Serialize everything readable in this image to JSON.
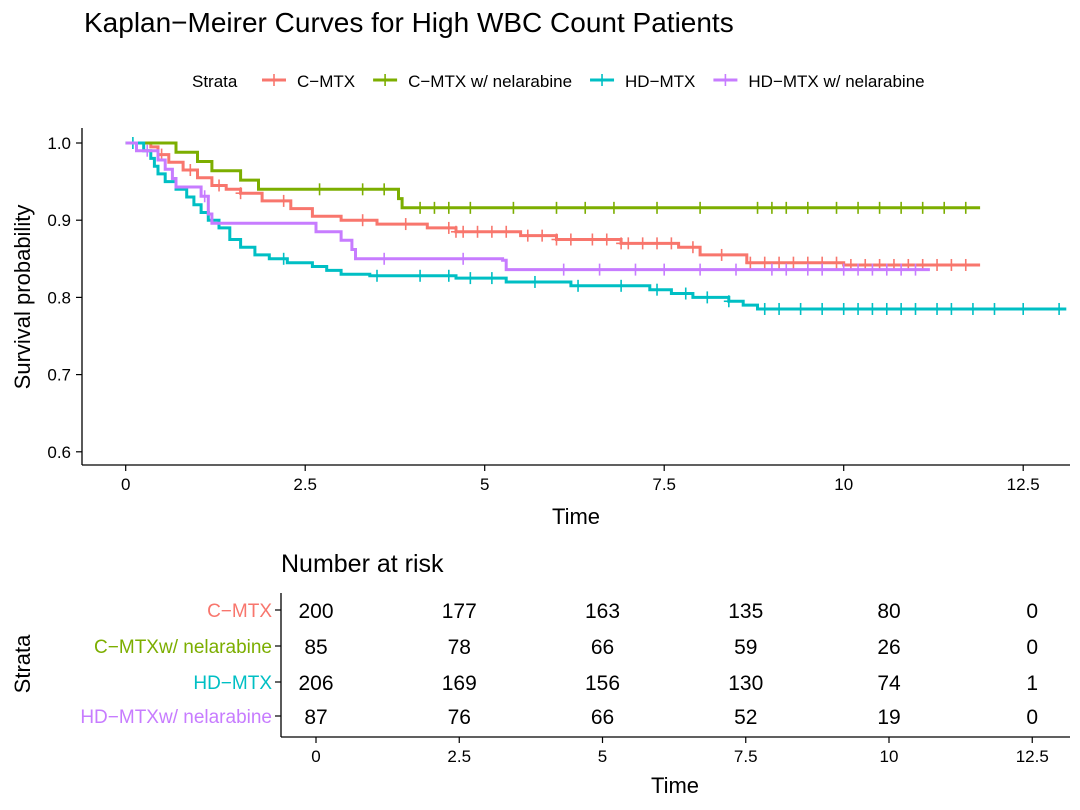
{
  "km_plot": {
    "title": "Kaplan−Meirer Curves for High WBC Count Patients",
    "legend_title": "Strata",
    "xlabel": "Time",
    "ylabel": "Survival probability",
    "xticks": [
      "0",
      "2.5",
      "5",
      "7.5",
      "10",
      "12.5"
    ],
    "yticks": [
      "0.6",
      "0.7",
      "0.8",
      "0.9",
      "1.0"
    ]
  },
  "risk_table": {
    "title": "Number at risk",
    "ylabel": "Strata",
    "xlabel": "Time",
    "xticks": [
      "0",
      "2.5",
      "5",
      "7.5",
      "10",
      "12.5"
    ],
    "rows": [
      {
        "label": "C−MTX",
        "color": "#F8766D",
        "values": [
          "200",
          "177",
          "163",
          "135",
          "80",
          "0"
        ]
      },
      {
        "label": "C−MTXw/ nelarabine",
        "color": "#7CAE00",
        "values": [
          "85",
          "78",
          "66",
          "59",
          "26",
          "0"
        ]
      },
      {
        "label": "HD−MTX",
        "color": "#00BFC4",
        "values": [
          "206",
          "169",
          "156",
          "130",
          "74",
          "1"
        ]
      },
      {
        "label": "HD−MTXw/ nelarabine",
        "color": "#C77CFF",
        "values": [
          "87",
          "76",
          "66",
          "52",
          "19",
          "0"
        ]
      }
    ]
  },
  "chart_data": {
    "type": "line",
    "title": "Kaplan−Meirer Curves for High WBC Count Patients",
    "xlabel": "Time",
    "ylabel": "Survival probability",
    "xlim": [
      -0.3,
      13.1
    ],
    "ylim": [
      0.58,
      1.02
    ],
    "grid": false,
    "legend_placement": "top",
    "step": true,
    "series": [
      {
        "name": "C−MTX",
        "color": "#F8766D",
        "points": [
          [
            0,
            1.0
          ],
          [
            0.35,
            0.995
          ],
          [
            0.45,
            0.985
          ],
          [
            0.6,
            0.975
          ],
          [
            0.8,
            0.965
          ],
          [
            1.0,
            0.955
          ],
          [
            1.2,
            0.945
          ],
          [
            1.4,
            0.94
          ],
          [
            1.6,
            0.935
          ],
          [
            1.9,
            0.925
          ],
          [
            2.3,
            0.915
          ],
          [
            2.6,
            0.905
          ],
          [
            3.0,
            0.9
          ],
          [
            3.5,
            0.895
          ],
          [
            4.2,
            0.89
          ],
          [
            4.6,
            0.885
          ],
          [
            5.5,
            0.88
          ],
          [
            6.0,
            0.875
          ],
          [
            6.9,
            0.87
          ],
          [
            7.7,
            0.865
          ],
          [
            8.0,
            0.855
          ],
          [
            8.65,
            0.845
          ],
          [
            9.5,
            0.845
          ],
          [
            10.0,
            0.842
          ],
          [
            11.9,
            0.842
          ]
        ],
        "censor_x": [
          0.5,
          0.9,
          1.3,
          1.6,
          2.2,
          3.3,
          3.9,
          4.5,
          4.6,
          4.7,
          4.9,
          5.1,
          5.3,
          5.6,
          5.8,
          6.0,
          6.2,
          6.5,
          6.7,
          6.9,
          7.0,
          7.2,
          7.4,
          7.6,
          7.9,
          8.3,
          8.7,
          8.9,
          9.1,
          9.3,
          9.5,
          9.7,
          9.9,
          10.1,
          10.3,
          10.5,
          10.7,
          10.9,
          11.1,
          11.3,
          11.5,
          11.7
        ]
      },
      {
        "name": "C−MTX w/ nelarabine",
        "color": "#7CAE00",
        "points": [
          [
            0,
            1.0
          ],
          [
            0.7,
            0.988
          ],
          [
            1.0,
            0.976
          ],
          [
            1.2,
            0.964
          ],
          [
            1.6,
            0.952
          ],
          [
            1.85,
            0.94
          ],
          [
            2.6,
            0.94
          ],
          [
            3.8,
            0.928
          ],
          [
            3.85,
            0.916
          ],
          [
            11.9,
            0.916
          ]
        ],
        "censor_x": [
          2.7,
          3.3,
          3.6,
          4.1,
          4.3,
          4.5,
          4.8,
          5.4,
          6.0,
          6.4,
          6.8,
          7.4,
          8.0,
          8.8,
          9.0,
          9.2,
          9.5,
          9.9,
          10.2,
          10.5,
          10.8,
          11.1,
          11.4,
          11.7
        ]
      },
      {
        "name": "HD−MTX",
        "color": "#00BFC4",
        "points": [
          [
            0,
            1.0
          ],
          [
            0.25,
            0.99
          ],
          [
            0.35,
            0.98
          ],
          [
            0.4,
            0.97
          ],
          [
            0.45,
            0.96
          ],
          [
            0.55,
            0.95
          ],
          [
            0.7,
            0.94
          ],
          [
            0.85,
            0.93
          ],
          [
            0.95,
            0.92
          ],
          [
            1.05,
            0.91
          ],
          [
            1.15,
            0.9
          ],
          [
            1.3,
            0.89
          ],
          [
            1.45,
            0.875
          ],
          [
            1.6,
            0.865
          ],
          [
            1.8,
            0.855
          ],
          [
            2.0,
            0.85
          ],
          [
            2.25,
            0.845
          ],
          [
            2.6,
            0.84
          ],
          [
            2.8,
            0.835
          ],
          [
            3.0,
            0.83
          ],
          [
            3.4,
            0.828
          ],
          [
            4.6,
            0.825
          ],
          [
            5.3,
            0.82
          ],
          [
            6.2,
            0.815
          ],
          [
            7.3,
            0.81
          ],
          [
            7.6,
            0.805
          ],
          [
            7.9,
            0.8
          ],
          [
            8.4,
            0.795
          ],
          [
            8.6,
            0.79
          ],
          [
            8.8,
            0.785
          ],
          [
            13.1,
            0.785
          ]
        ],
        "censor_x": [
          0.1,
          2.2,
          3.5,
          4.1,
          4.5,
          4.8,
          5.1,
          5.7,
          6.3,
          6.9,
          7.4,
          7.8,
          8.1,
          8.4,
          8.9,
          9.1,
          9.4,
          9.7,
          10.0,
          10.2,
          10.4,
          10.6,
          10.8,
          11.0,
          11.3,
          11.5,
          11.8,
          12.1,
          12.5,
          13.0
        ]
      },
      {
        "name": "HD−MTX w/ nelarabine",
        "color": "#C77CFF",
        "points": [
          [
            0,
            1.0
          ],
          [
            0.15,
            0.99
          ],
          [
            0.45,
            0.978
          ],
          [
            0.55,
            0.966
          ],
          [
            0.65,
            0.954
          ],
          [
            0.7,
            0.943
          ],
          [
            1.05,
            0.931
          ],
          [
            1.15,
            0.908
          ],
          [
            1.2,
            0.896
          ],
          [
            2.65,
            0.885
          ],
          [
            3.0,
            0.874
          ],
          [
            3.15,
            0.862
          ],
          [
            3.2,
            0.85
          ],
          [
            5.25,
            0.848
          ],
          [
            5.3,
            0.836
          ],
          [
            11.2,
            0.836
          ]
        ],
        "censor_x": [
          0.3,
          1.1,
          3.6,
          4.7,
          6.1,
          6.6,
          7.1,
          7.5,
          8.0,
          8.5,
          9.0,
          9.2,
          9.5,
          9.7,
          10.0,
          10.2,
          10.4,
          10.6,
          10.8,
          11.0
        ]
      }
    ]
  }
}
